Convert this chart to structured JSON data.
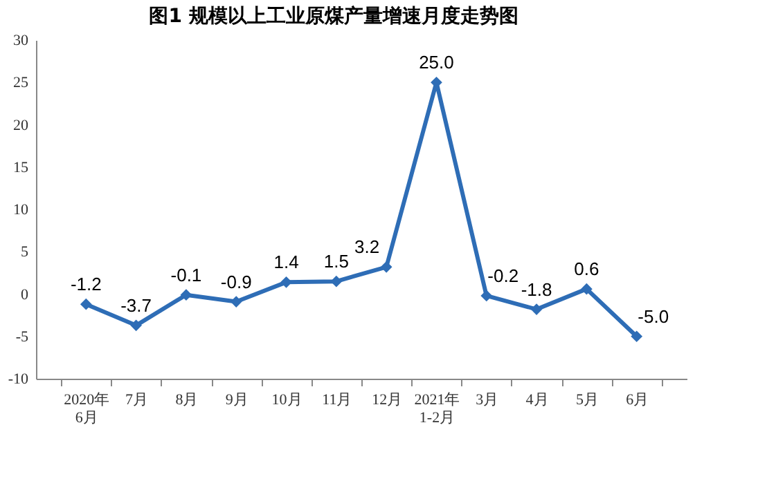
{
  "chart_data": {
    "type": "line",
    "title": "图1  规模以上工业原煤产量增速月度走势图",
    "categories": [
      "2020年\n6月",
      "7月",
      "8月",
      "9月",
      "10月",
      "11月",
      "12月",
      "2021年\n1-2月",
      "3月",
      "4月",
      "5月",
      "6月"
    ],
    "series": [
      {
        "color": "#2e6db6",
        "values": [
          -1.2,
          -3.7,
          -0.1,
          -0.9,
          1.4,
          1.5,
          3.2,
          25.0,
          -0.2,
          -1.8,
          0.6,
          -5.0
        ],
        "value_labels": [
          "-1.2",
          "-3.7",
          "-0.1",
          "-0.9",
          "1.4",
          "1.5",
          "3.2",
          "25.0",
          "-0.2",
          "-1.8",
          "0.6",
          "-5.0"
        ]
      }
    ],
    "ylim": [
      -10,
      30
    ],
    "yticks": [
      -10,
      -5,
      0,
      5,
      10,
      15,
      20,
      25,
      30
    ],
    "grid": false,
    "marker": "diamond",
    "line_style": "solid"
  }
}
